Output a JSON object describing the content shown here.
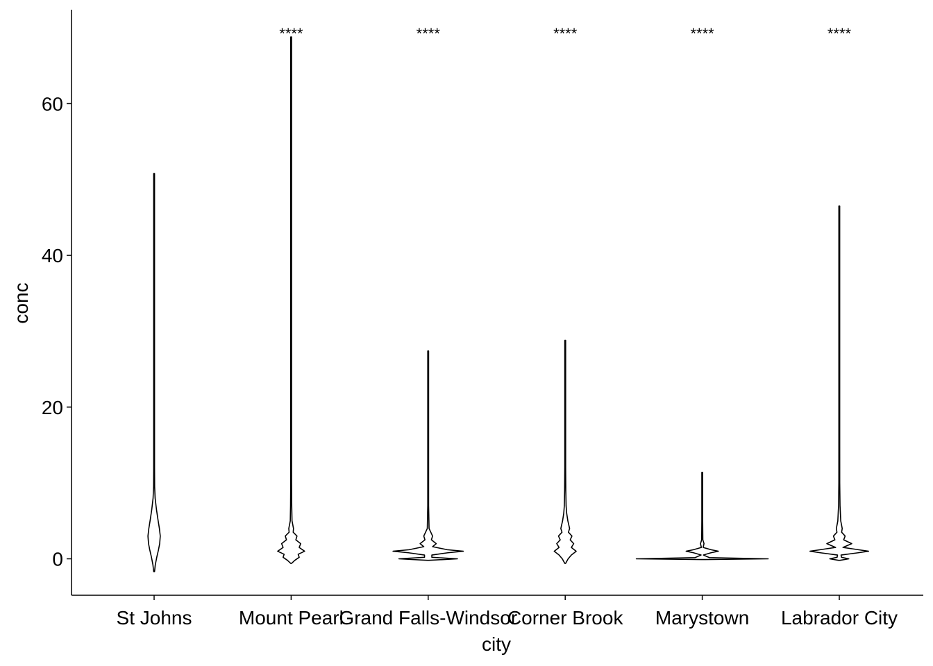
{
  "chart_data": {
    "type": "violin",
    "xlabel": "city",
    "ylabel": "conc",
    "categories": [
      "St Johns",
      "Mount Pearl",
      "Grand Falls-Windsor",
      "Corner Brook",
      "Marystown",
      "Labrador City"
    ],
    "ylim": [
      -5,
      72
    ],
    "yticks": [
      0,
      20,
      40,
      60
    ],
    "grid": false,
    "legend": "none",
    "significance_labels": [
      "",
      "****",
      "****",
      "****",
      "****",
      "****"
    ],
    "series": [
      {
        "category": "St Johns",
        "min": -1.7,
        "max": 50.8,
        "density": [
          [
            -1.7,
            0.02
          ],
          [
            -0.8,
            0.08
          ],
          [
            0.2,
            0.18
          ],
          [
            1.2,
            0.3
          ],
          [
            2.0,
            0.38
          ],
          [
            3.0,
            0.42
          ],
          [
            4.0,
            0.36
          ],
          [
            5.2,
            0.26
          ],
          [
            6.5,
            0.16
          ],
          [
            8.0,
            0.07
          ],
          [
            9.5,
            0.035
          ],
          [
            12,
            0.02
          ],
          [
            16.5,
            0.012
          ],
          [
            20,
            0.004
          ],
          [
            30,
            0.003
          ],
          [
            50.8,
            0.002
          ]
        ]
      },
      {
        "category": "Mount Pearl",
        "min": -0.6,
        "max": 68.8,
        "density": [
          [
            -0.6,
            0.03
          ],
          [
            -0.2,
            0.25
          ],
          [
            0.2,
            0.55
          ],
          [
            0.6,
            0.48
          ],
          [
            1.0,
            0.92
          ],
          [
            1.5,
            0.55
          ],
          [
            2.0,
            0.65
          ],
          [
            2.5,
            0.32
          ],
          [
            3.0,
            0.4
          ],
          [
            3.5,
            0.14
          ],
          [
            4.0,
            0.16
          ],
          [
            5.0,
            0.06
          ],
          [
            7.0,
            0.04
          ],
          [
            10,
            0.03
          ],
          [
            12,
            0.015
          ],
          [
            20,
            0.004
          ],
          [
            68.8,
            0.002
          ]
        ]
      },
      {
        "category": "Grand Falls-Windsor",
        "min": -0.2,
        "max": 27.4,
        "density": [
          [
            -0.2,
            0.05
          ],
          [
            0.0,
            2.0
          ],
          [
            0.2,
            0.25
          ],
          [
            0.5,
            0.25
          ],
          [
            0.8,
            1.35
          ],
          [
            1.0,
            2.4
          ],
          [
            1.2,
            1.3
          ],
          [
            1.6,
            0.3
          ],
          [
            2.0,
            0.55
          ],
          [
            2.5,
            0.22
          ],
          [
            3.0,
            0.3
          ],
          [
            4.0,
            0.06
          ],
          [
            5.0,
            0.05
          ],
          [
            7,
            0.015
          ],
          [
            27.4,
            0.002
          ]
        ]
      },
      {
        "category": "Corner Brook",
        "min": -0.6,
        "max": 28.8,
        "density": [
          [
            -0.6,
            0.02
          ],
          [
            0.0,
            0.2
          ],
          [
            0.5,
            0.42
          ],
          [
            1.0,
            0.75
          ],
          [
            1.5,
            0.42
          ],
          [
            2.0,
            0.58
          ],
          [
            2.5,
            0.34
          ],
          [
            3.0,
            0.46
          ],
          [
            3.5,
            0.22
          ],
          [
            4.0,
            0.3
          ],
          [
            5.0,
            0.18
          ],
          [
            6.0,
            0.1
          ],
          [
            7.0,
            0.06
          ],
          [
            9.0,
            0.04
          ],
          [
            12,
            0.02
          ],
          [
            15,
            0.008
          ],
          [
            28.8,
            0.002
          ]
        ]
      },
      {
        "category": "Marystown",
        "min": -0.1,
        "max": 11.4,
        "density": [
          [
            -0.1,
            0.05
          ],
          [
            0.0,
            4.5
          ],
          [
            0.15,
            0.5
          ],
          [
            0.5,
            0.08
          ],
          [
            0.8,
            0.6
          ],
          [
            1.0,
            1.1
          ],
          [
            1.2,
            0.6
          ],
          [
            1.5,
            0.06
          ],
          [
            2.0,
            0.12
          ],
          [
            2.5,
            0.04
          ],
          [
            5,
            0.012
          ],
          [
            11.4,
            0.003
          ]
        ]
      },
      {
        "category": "Labrador City",
        "min": -0.2,
        "max": 46.5,
        "density": [
          [
            -0.2,
            0.05
          ],
          [
            0.0,
            0.65
          ],
          [
            0.2,
            0.15
          ],
          [
            0.5,
            0.12
          ],
          [
            0.8,
            1.3
          ],
          [
            1.0,
            2.0
          ],
          [
            1.2,
            1.3
          ],
          [
            1.5,
            0.25
          ],
          [
            2.0,
            0.85
          ],
          [
            2.5,
            0.3
          ],
          [
            3.0,
            0.4
          ],
          [
            3.5,
            0.16
          ],
          [
            4.0,
            0.2
          ],
          [
            5.0,
            0.1
          ],
          [
            7.0,
            0.05
          ],
          [
            10,
            0.03
          ],
          [
            15,
            0.012
          ],
          [
            46.5,
            0.002
          ]
        ]
      }
    ]
  }
}
